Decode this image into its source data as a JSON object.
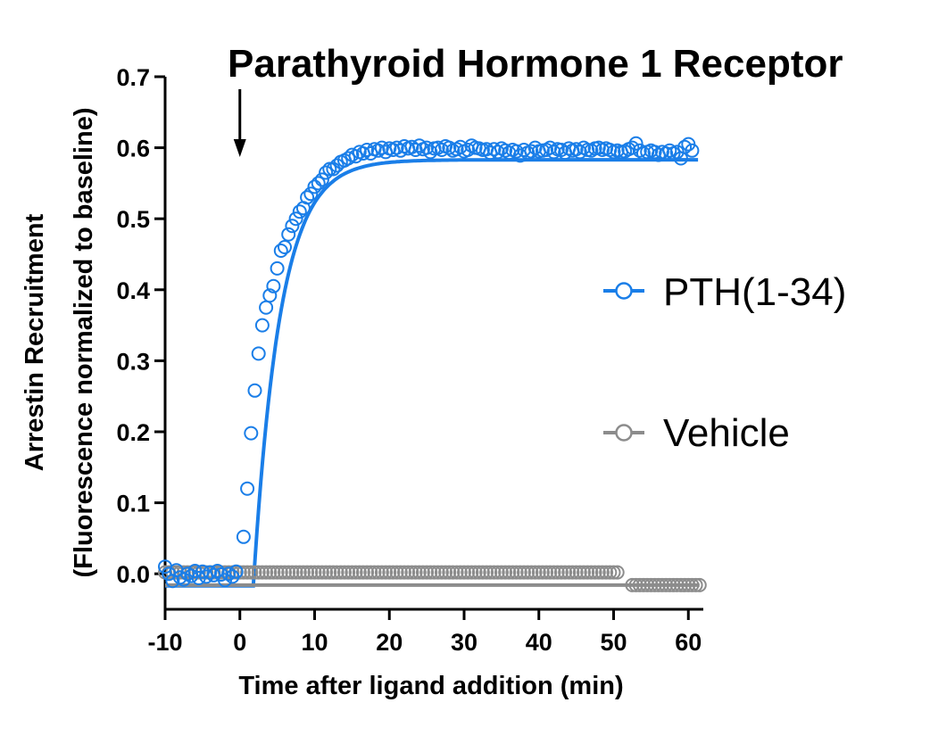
{
  "chart_data": {
    "type": "scatter",
    "title": "Parathyroid Hormone 1 Receptor",
    "xlabel": "Time after ligand addition (min)",
    "ylabel": "Arrestin Recruitment",
    "ylabel2": "(Fluorescence normalized to baseline)",
    "xlim": [
      -10,
      62
    ],
    "ylim": [
      -0.05,
      0.7
    ],
    "x_ticks": [
      "-10",
      "0",
      "10",
      "20",
      "30",
      "40",
      "50",
      "60"
    ],
    "x_tick_values": [
      -10,
      0,
      10,
      20,
      30,
      40,
      50,
      60
    ],
    "y_ticks": [
      "0.0",
      "0.1",
      "0.2",
      "0.3",
      "0.4",
      "0.5",
      "0.6",
      "0.7"
    ],
    "y_tick_values": [
      0,
      0.1,
      0.2,
      0.3,
      0.4,
      0.5,
      0.6,
      0.7
    ],
    "grid": false,
    "legend_position": "right",
    "annotation": "arrow at ligand addition (x = 0)",
    "annotation_x": 0,
    "series": [
      {
        "name": "PTH(1-34)",
        "color": "#1a7ee8",
        "marker": "open-circle",
        "fit": {
          "model": "plateau then one-phase association",
          "baseline": -0.017,
          "plateau": 0.583,
          "x0": 1.8,
          "k": 0.28,
          "x_end": 61.5
        },
        "x": [
          -10,
          -9.5,
          -9,
          -8.5,
          -8,
          -7.5,
          -7,
          -6.5,
          -6,
          -5.5,
          -5,
          -4.5,
          -4,
          -3.5,
          -3,
          -2.5,
          -2,
          -1.5,
          -1,
          -0.5,
          0.5,
          1,
          1.5,
          2,
          2.5,
          3,
          3.5,
          4,
          4.5,
          5,
          5.5,
          6,
          6.5,
          7,
          7.5,
          8,
          8.5,
          9,
          9.5,
          10,
          10.5,
          11,
          11.5,
          12,
          12.5,
          13,
          13.5,
          14,
          14.5,
          15,
          15.5,
          16,
          16.5,
          17,
          17.5,
          18,
          18.5,
          19,
          19.5,
          20,
          20.5,
          21,
          21.5,
          22,
          22.5,
          23,
          23.5,
          24,
          24.5,
          25,
          25.5,
          26,
          26.5,
          27,
          27.5,
          28,
          28.5,
          29,
          29.5,
          30,
          30.5,
          31,
          31.5,
          32,
          32.5,
          33,
          33.5,
          34,
          34.5,
          35,
          35.5,
          36,
          36.5,
          37,
          37.5,
          38,
          38.5,
          39,
          39.5,
          40,
          40.5,
          41,
          41.5,
          42,
          42.5,
          43,
          43.5,
          44,
          44.5,
          45,
          45.5,
          46,
          46.5,
          47,
          47.5,
          48,
          48.5,
          49,
          49.5,
          50,
          50.5,
          51,
          51.5,
          52,
          52.5,
          53,
          53.5,
          54,
          54.5,
          55,
          55.5,
          56,
          56.5,
          57,
          57.5,
          58,
          58.5,
          59,
          59.5,
          60,
          60.5
        ],
        "y": [
          0.01,
          0.0,
          -0.01,
          0.005,
          -0.005,
          -0.008,
          0.0,
          -0.003,
          0.004,
          -0.006,
          0.003,
          -0.004,
          0.002,
          -0.002,
          0.004,
          -0.001,
          -0.009,
          0.0,
          -0.004,
          0.003,
          0.052,
          0.12,
          0.198,
          0.258,
          0.31,
          0.35,
          0.375,
          0.392,
          0.405,
          0.43,
          0.455,
          0.46,
          0.478,
          0.49,
          0.5,
          0.51,
          0.515,
          0.53,
          0.535,
          0.545,
          0.55,
          0.555,
          0.565,
          0.57,
          0.57,
          0.575,
          0.58,
          0.582,
          0.585,
          0.59,
          0.588,
          0.594,
          0.592,
          0.597,
          0.592,
          0.598,
          0.596,
          0.6,
          0.594,
          0.599,
          0.597,
          0.6,
          0.596,
          0.602,
          0.599,
          0.601,
          0.597,
          0.603,
          0.598,
          0.6,
          0.594,
          0.599,
          0.6,
          0.597,
          0.602,
          0.6,
          0.596,
          0.598,
          0.601,
          0.595,
          0.597,
          0.603,
          0.6,
          0.599,
          0.597,
          0.598,
          0.593,
          0.598,
          0.594,
          0.599,
          0.596,
          0.593,
          0.597,
          0.595,
          0.589,
          0.597,
          0.593,
          0.595,
          0.6,
          0.595,
          0.596,
          0.597,
          0.6,
          0.594,
          0.598,
          0.597,
          0.593,
          0.599,
          0.596,
          0.598,
          0.594,
          0.6,
          0.597,
          0.596,
          0.599,
          0.6,
          0.597,
          0.599,
          0.597,
          0.594,
          0.596,
          0.594,
          0.595,
          0.598,
          0.6,
          0.606,
          0.596,
          0.592,
          0.594,
          0.596,
          0.594,
          0.59,
          0.594,
          0.592,
          0.596,
          0.592,
          0.594,
          0.585,
          0.601,
          0.605,
          0.596
        ]
      },
      {
        "name": "Vehicle",
        "color": "#8c8c8c",
        "marker": "open-circle",
        "fit": {
          "model": "constant",
          "value": -0.016,
          "x_start": -10,
          "x_end": 61.5
        },
        "x": [
          -10,
          -9.5,
          -9,
          -8.5,
          -8,
          -7.5,
          -7,
          -6.5,
          -6,
          -5.5,
          -5,
          -4.5,
          -4,
          -3.5,
          -3,
          -2.5,
          -2,
          -1.5,
          -1,
          -0.5,
          0,
          0.5,
          1,
          1.5,
          2,
          2.5,
          3,
          3.5,
          4,
          4.5,
          5,
          5.5,
          6,
          6.5,
          7,
          7.5,
          8,
          8.5,
          9,
          9.5,
          10,
          10.5,
          11,
          11.5,
          12,
          12.5,
          13,
          13.5,
          14,
          14.5,
          15,
          15.5,
          16,
          16.5,
          17,
          17.5,
          18,
          18.5,
          19,
          19.5,
          20,
          20.5,
          21,
          21.5,
          22,
          22.5,
          23,
          23.5,
          24,
          24.5,
          25,
          25.5,
          26,
          26.5,
          27,
          27.5,
          28,
          28.5,
          29,
          29.5,
          30,
          30.5,
          31,
          31.5,
          32,
          32.5,
          33,
          33.5,
          34,
          34.5,
          35,
          35.5,
          36,
          36.5,
          37,
          37.5,
          38,
          38.5,
          39,
          39.5,
          40,
          40.5,
          41,
          41.5,
          42,
          42.5,
          43,
          43.5,
          44,
          44.5,
          45,
          45.5,
          46,
          46.5,
          47,
          47.5,
          48,
          48.5,
          49,
          49.5,
          50,
          50.5,
          52.5,
          53,
          53.5,
          54,
          54.5,
          55,
          55.5,
          56,
          56.5,
          57,
          57.5,
          58,
          58.5,
          59,
          59.5,
          60,
          60.5,
          61,
          61.5
        ],
        "y": [
          0.002,
          0.002,
          0.002,
          0.002,
          0.002,
          0.002,
          0.002,
          0.002,
          0.002,
          0.002,
          0.002,
          0.002,
          0.002,
          0.002,
          0.002,
          0.002,
          0.002,
          0.002,
          0.002,
          0.002,
          0.002,
          0.002,
          0.002,
          0.002,
          0.002,
          0.002,
          0.002,
          0.002,
          0.002,
          0.002,
          0.002,
          0.002,
          0.002,
          0.002,
          0.002,
          0.002,
          0.002,
          0.002,
          0.002,
          0.002,
          0.002,
          0.002,
          0.002,
          0.002,
          0.002,
          0.002,
          0.002,
          0.002,
          0.002,
          0.002,
          0.002,
          0.002,
          0.002,
          0.002,
          0.002,
          0.002,
          0.002,
          0.002,
          0.002,
          0.002,
          0.002,
          0.002,
          0.002,
          0.002,
          0.002,
          0.002,
          0.002,
          0.002,
          0.002,
          0.002,
          0.002,
          0.002,
          0.002,
          0.002,
          0.002,
          0.002,
          0.002,
          0.002,
          0.002,
          0.002,
          0.002,
          0.002,
          0.002,
          0.002,
          0.002,
          0.002,
          0.002,
          0.002,
          0.002,
          0.002,
          0.002,
          0.002,
          0.002,
          0.002,
          0.002,
          0.002,
          0.002,
          0.002,
          0.002,
          0.002,
          0.002,
          0.002,
          0.002,
          0.002,
          0.002,
          0.002,
          0.002,
          0.002,
          0.002,
          0.002,
          0.002,
          0.002,
          0.002,
          0.002,
          0.002,
          0.002,
          0.002,
          0.002,
          0.002,
          0.002,
          0.002,
          0.002,
          -0.016,
          -0.016,
          -0.016,
          -0.016,
          -0.016,
          -0.016,
          -0.016,
          -0.016,
          -0.016,
          -0.016,
          -0.016,
          -0.016,
          -0.016,
          -0.016,
          -0.016,
          -0.016,
          -0.016,
          -0.016,
          -0.016
        ]
      }
    ]
  }
}
